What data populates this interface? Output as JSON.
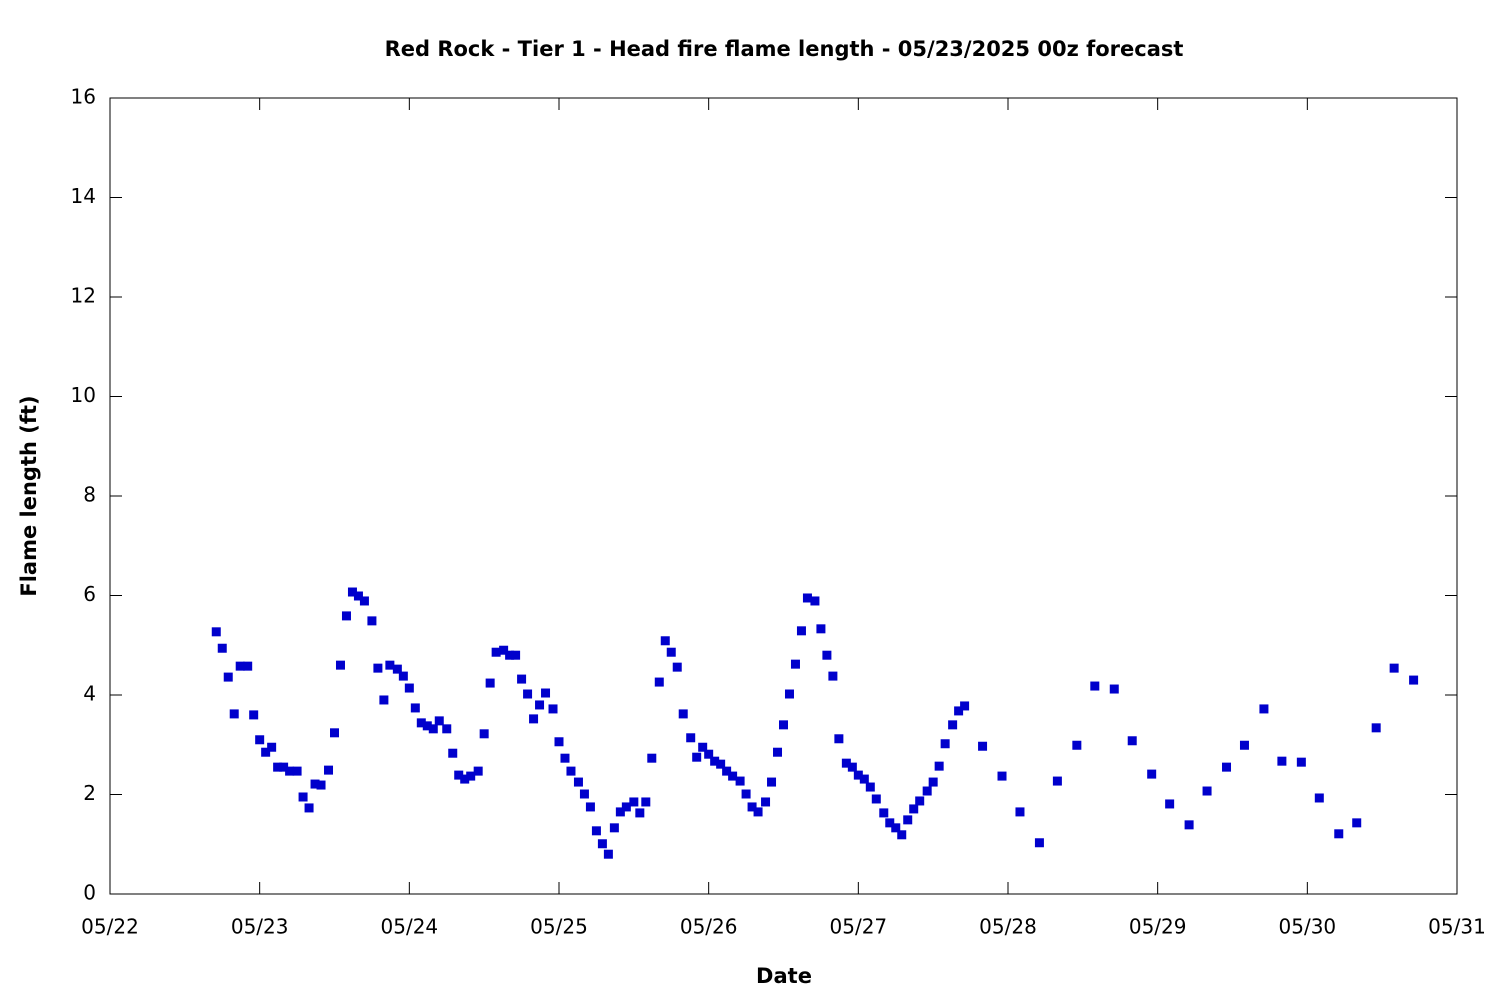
{
  "chart_data": {
    "type": "scatter",
    "title": "Red Rock - Tier 1 - Head fire flame length - 05/23/2025 00z forecast",
    "x_label": "Date",
    "y_label": "Flame length (ft)",
    "series": [
      {
        "color": "#0000cc",
        "x": [
          22.71,
          22.75,
          22.79,
          22.83,
          22.87,
          22.92,
          22.96,
          23.0,
          23.04,
          23.08,
          23.12,
          23.16,
          23.2,
          23.25,
          23.29,
          23.33,
          23.37,
          23.41,
          23.46,
          23.5,
          23.54,
          23.58,
          23.62,
          23.66,
          23.7,
          23.75,
          23.79,
          23.83,
          23.87,
          23.92,
          23.96,
          24.0,
          24.04,
          24.08,
          24.12,
          24.16,
          24.2,
          24.25,
          24.29,
          24.33,
          24.37,
          24.41,
          24.46,
          24.5,
          24.54,
          24.58,
          24.63,
          24.67,
          24.71,
          24.75,
          24.79,
          24.83,
          24.87,
          24.91,
          24.96,
          25.0,
          25.04,
          25.08,
          25.13,
          25.17,
          25.21,
          25.25,
          25.29,
          25.33,
          25.37,
          25.41,
          25.45,
          25.5,
          25.54,
          25.58,
          25.62,
          25.67,
          25.71,
          25.75,
          25.79,
          25.83,
          25.88,
          25.92,
          25.96,
          26.0,
          26.04,
          26.08,
          26.12,
          26.16,
          26.21,
          26.25,
          26.29,
          26.33,
          26.38,
          26.42,
          26.46,
          26.5,
          26.54,
          26.58,
          26.62,
          26.66,
          26.71,
          26.75,
          26.79,
          26.83,
          26.87,
          26.92,
          26.96,
          27.0,
          27.04,
          27.08,
          27.12,
          27.17,
          27.21,
          27.25,
          27.29,
          27.33,
          27.37,
          27.41,
          27.46,
          27.5,
          27.54,
          27.58,
          27.63,
          27.67,
          27.71,
          27.83,
          27.96,
          28.08,
          28.21,
          28.33,
          28.46,
          28.58,
          28.71,
          28.83,
          28.96,
          29.08,
          29.21,
          29.33,
          29.46,
          29.58,
          29.71,
          29.83,
          29.96,
          30.08,
          30.21,
          30.33,
          30.46,
          30.58,
          30.71
        ],
        "values": [
          5.27,
          4.94,
          4.36,
          3.62,
          4.58,
          4.58,
          3.6,
          3.1,
          2.85,
          2.95,
          2.55,
          2.55,
          2.47,
          2.47,
          1.95,
          1.73,
          2.21,
          2.19,
          2.49,
          3.24,
          4.6,
          5.59,
          6.07,
          5.99,
          5.89,
          5.49,
          4.54,
          3.9,
          4.6,
          4.52,
          4.38,
          4.14,
          3.74,
          3.44,
          3.38,
          3.32,
          3.48,
          3.32,
          2.83,
          2.39,
          2.31,
          2.37,
          2.47,
          3.22,
          4.24,
          4.86,
          4.9,
          4.8,
          4.8,
          4.32,
          4.02,
          3.52,
          3.8,
          4.04,
          3.72,
          3.06,
          2.73,
          2.47,
          2.25,
          2.01,
          1.75,
          1.27,
          1.01,
          0.8,
          1.33,
          1.65,
          1.75,
          1.85,
          1.63,
          1.85,
          2.73,
          4.26,
          5.09,
          4.86,
          4.56,
          3.62,
          3.14,
          2.75,
          2.95,
          2.81,
          2.67,
          2.61,
          2.47,
          2.37,
          2.27,
          2.01,
          1.75,
          1.65,
          1.85,
          2.25,
          2.85,
          3.4,
          4.02,
          4.62,
          5.29,
          5.95,
          5.89,
          5.33,
          4.8,
          4.38,
          3.12,
          2.63,
          2.55,
          2.39,
          2.31,
          2.15,
          1.91,
          1.63,
          1.43,
          1.33,
          1.19,
          1.49,
          1.71,
          1.87,
          2.07,
          2.25,
          2.57,
          3.02,
          3.4,
          3.68,
          3.78,
          2.97,
          2.37,
          1.65,
          1.03,
          2.27,
          2.99,
          4.18,
          4.12,
          3.08,
          2.41,
          1.81,
          1.39,
          2.07,
          2.55,
          2.99,
          3.72,
          2.67,
          2.65,
          1.93,
          1.21,
          1.43,
          3.34,
          4.54,
          4.3
        ]
      }
    ],
    "xlim": [
      22,
      31
    ],
    "xticks": [
      {
        "value": 22,
        "label": "05/22"
      },
      {
        "value": 23,
        "label": "05/23"
      },
      {
        "value": 24,
        "label": "05/24"
      },
      {
        "value": 25,
        "label": "05/25"
      },
      {
        "value": 26,
        "label": "05/26"
      },
      {
        "value": 27,
        "label": "05/27"
      },
      {
        "value": 28,
        "label": "05/28"
      },
      {
        "value": 29,
        "label": "05/29"
      },
      {
        "value": 30,
        "label": "05/30"
      },
      {
        "value": 31,
        "label": "05/31"
      }
    ],
    "ylim": [
      0,
      16
    ],
    "yticks": [
      0,
      2,
      4,
      6,
      8,
      10,
      12,
      14,
      16
    ],
    "grid": false
  }
}
